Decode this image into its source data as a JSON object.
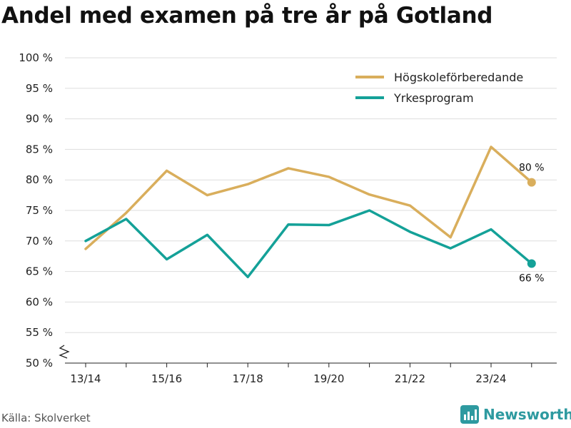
{
  "title": "Andel med examen på tre år på Gotland",
  "source": "Källa: Skolverket",
  "brand": {
    "name": "Newsworthy",
    "icon": "newsworthy-logo-icon"
  },
  "colors": {
    "series1": "#D9AE5C",
    "series2": "#14A198",
    "grid": "#DDDDDD",
    "axis": "#222222"
  },
  "chart_data": {
    "type": "line",
    "title": "Andel med examen på tre år på Gotland",
    "xlabel": "",
    "ylabel": "",
    "ylim": [
      50,
      100
    ],
    "y_ticks": [
      50,
      55,
      60,
      65,
      70,
      75,
      80,
      85,
      90,
      95,
      100
    ],
    "y_tick_labels": [
      "50 %",
      "55 %",
      "60 %",
      "65 %",
      "70 %",
      "75 %",
      "80 %",
      "85 %",
      "90 %",
      "95 %",
      "100 %"
    ],
    "y_axis_break": true,
    "grid": true,
    "legend_position": "top-right",
    "categories": [
      "13/14",
      "14/15",
      "15/16",
      "16/17",
      "17/18",
      "18/19",
      "19/20",
      "20/21",
      "21/22",
      "22/23",
      "23/24",
      "24/25"
    ],
    "x_tick_labels": [
      "13/14",
      "",
      "15/16",
      "",
      "17/18",
      "",
      "19/20",
      "",
      "21/22",
      "",
      "23/24",
      ""
    ],
    "series": [
      {
        "name": "Högskoleförberedande",
        "color": "#D9AE5C",
        "values": [
          68.7,
          74.6,
          81.5,
          77.5,
          79.3,
          81.9,
          80.5,
          77.6,
          75.8,
          70.6,
          85.4,
          79.6
        ],
        "end_label": "80 %"
      },
      {
        "name": "Yrkesprogram",
        "color": "#14A198",
        "values": [
          70.0,
          73.6,
          67.0,
          71.0,
          64.1,
          72.7,
          72.6,
          75.0,
          71.5,
          68.8,
          71.9,
          66.3
        ],
        "end_label": "66 %"
      }
    ]
  }
}
